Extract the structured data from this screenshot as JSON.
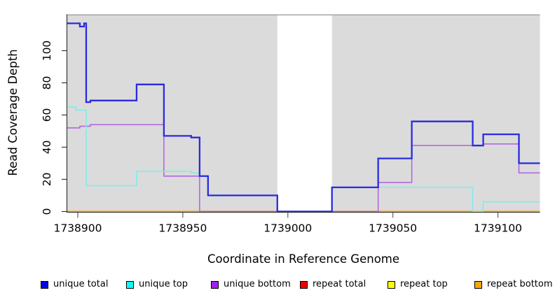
{
  "axes": {
    "xlabel": "Coordinate in Reference Genome",
    "ylabel": "Read Coverage Depth"
  },
  "legend": {
    "items": [
      {
        "label": "unique total",
        "color": "#0000FF"
      },
      {
        "label": "unique top",
        "color": "#00FFFF"
      },
      {
        "label": "unique bottom",
        "color": "#A020F0"
      },
      {
        "label": "repeat total",
        "color": "#EE0000"
      },
      {
        "label": "repeat top",
        "color": "#FFFF00"
      },
      {
        "label": "repeat bottom",
        "color": "#FFA500"
      }
    ]
  },
  "chart_data": {
    "type": "line",
    "step": "post",
    "title": "",
    "xlabel": "Coordinate in Reference Genome",
    "ylabel": "Read Coverage Depth",
    "xlim": [
      1738895,
      1739120
    ],
    "ylim": [
      0,
      122
    ],
    "x_ticks": [
      1738900,
      1738950,
      1739000,
      1739050,
      1739100
    ],
    "y_ticks": [
      0,
      20,
      40,
      60,
      80,
      100
    ],
    "grid": false,
    "legend_position": "bottom",
    "panel_color": "#DBDBDB",
    "panel_top_border_color": "#A0A0A0",
    "uncovered_white_region": [
      1738995,
      1739021
    ],
    "series": [
      {
        "name": "repeat total",
        "color": "#E03030",
        "width": 2.0,
        "points": [
          [
            1738895,
            0
          ],
          [
            1739120,
            0
          ]
        ]
      },
      {
        "name": "repeat top",
        "color": "#FFFF00",
        "width": 2.0,
        "points": [
          [
            1738895,
            0
          ],
          [
            1739120,
            0
          ]
        ]
      },
      {
        "name": "repeat bottom",
        "color": "#FFA500",
        "width": 2.0,
        "points": [
          [
            1738895,
            0
          ],
          [
            1739120,
            0
          ]
        ]
      },
      {
        "name": "unique bottom",
        "color": "#B168E0",
        "width": 1.6,
        "points": [
          [
            1738895,
            52
          ],
          [
            1738901,
            53
          ],
          [
            1738906,
            54
          ],
          [
            1738941,
            22
          ],
          [
            1738958,
            0
          ],
          [
            1739043,
            18
          ],
          [
            1739059,
            41
          ],
          [
            1739093,
            42
          ],
          [
            1739110,
            24
          ],
          [
            1739120,
            24
          ]
        ]
      },
      {
        "name": "unique top",
        "color": "#7DEDED",
        "width": 1.6,
        "points": [
          [
            1738895,
            65
          ],
          [
            1738899,
            63
          ],
          [
            1738904,
            16
          ],
          [
            1738928,
            25
          ],
          [
            1738954,
            24
          ],
          [
            1738958,
            22
          ],
          [
            1738962,
            10
          ],
          [
            1738995,
            0
          ],
          [
            1739021,
            15
          ],
          [
            1739088,
            0
          ],
          [
            1739093,
            6
          ],
          [
            1739120,
            6
          ]
        ]
      },
      {
        "name": "unique total",
        "color": "#2A2AE0",
        "width": 2.3,
        "points": [
          [
            1738895,
            117
          ],
          [
            1738901,
            115
          ],
          [
            1738903,
            117
          ],
          [
            1738904,
            68
          ],
          [
            1738906,
            69
          ],
          [
            1738928,
            79
          ],
          [
            1738941,
            47
          ],
          [
            1738954,
            46
          ],
          [
            1738958,
            22
          ],
          [
            1738962,
            10
          ],
          [
            1738995,
            0
          ],
          [
            1739021,
            15
          ],
          [
            1739043,
            33
          ],
          [
            1739059,
            56
          ],
          [
            1739088,
            41
          ],
          [
            1739093,
            48
          ],
          [
            1739110,
            30
          ],
          [
            1739120,
            30
          ]
        ]
      }
    ]
  }
}
